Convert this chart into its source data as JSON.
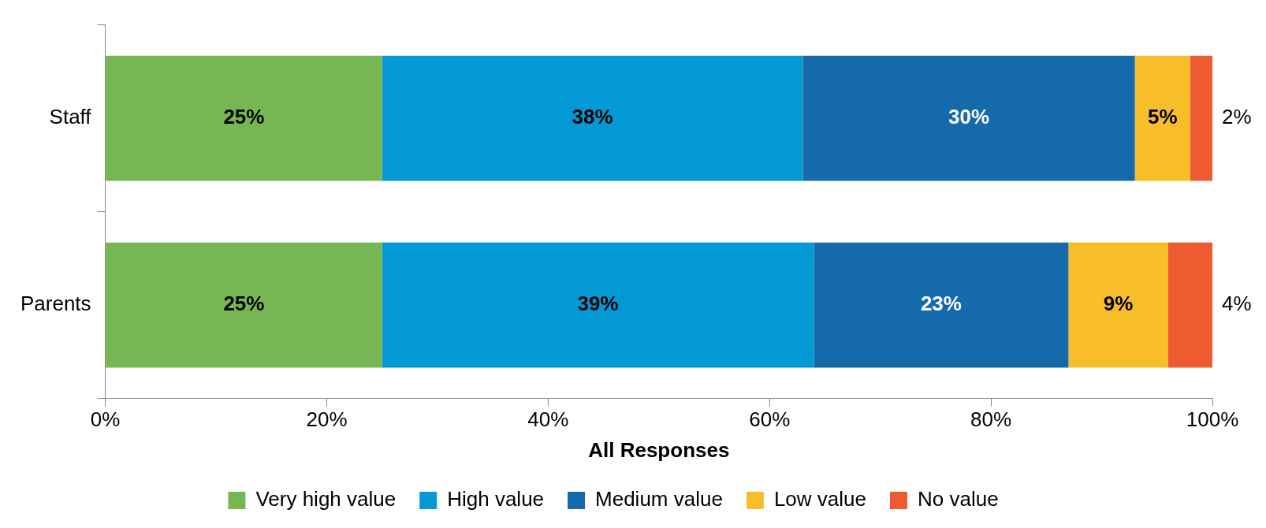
{
  "chart_data": {
    "type": "bar",
    "orientation": "horizontal",
    "stacked": true,
    "xlabel": "All Responses",
    "categories": [
      "Staff",
      "Parents"
    ],
    "series": [
      {
        "name": "Very high value",
        "color": "#77b753",
        "values": [
          25,
          25
        ],
        "value_labels": [
          "25%",
          "25%"
        ]
      },
      {
        "name": "High value",
        "color": "#0399d4",
        "values": [
          38,
          39
        ],
        "value_labels": [
          "38%",
          "39%"
        ]
      },
      {
        "name": "Medium value",
        "color": "#146aab",
        "values": [
          30,
          23
        ],
        "value_labels": [
          "30%",
          "23%"
        ]
      },
      {
        "name": "Low value",
        "color": "#f8be2a",
        "values": [
          5,
          9
        ],
        "value_labels": [
          "5%",
          "9%"
        ]
      },
      {
        "name": "No value",
        "color": "#ee5b30",
        "values": [
          2,
          4
        ],
        "value_labels": [
          "2%",
          "4%"
        ]
      }
    ],
    "xlim": [
      0,
      100
    ],
    "xticks": [
      {
        "value": 0,
        "label": "0%"
      },
      {
        "value": 20,
        "label": "20%"
      },
      {
        "value": 40,
        "label": "40%"
      },
      {
        "value": 60,
        "label": "60%"
      },
      {
        "value": 80,
        "label": "80%"
      },
      {
        "value": 100,
        "label": "100%"
      }
    ],
    "grid": false,
    "legend": "bottom"
  }
}
